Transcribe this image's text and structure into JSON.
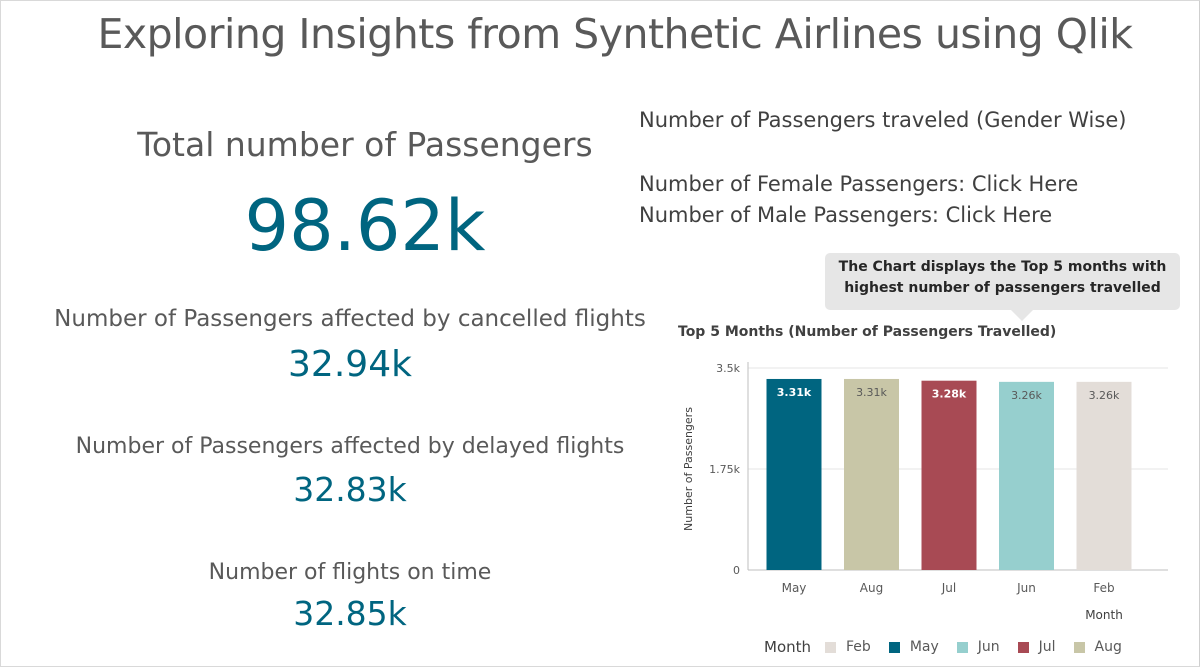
{
  "title": "Exploring Insights from Synthetic Airlines using Qlik",
  "kpis": {
    "total": {
      "label": "Total number of Passengers",
      "value": "98.62k"
    },
    "cancelled": {
      "label": "Number of Passengers affected by cancelled flights",
      "value": "32.94k"
    },
    "delayed": {
      "label": "Number of Passengers affected by delayed flights",
      "value": "32.83k"
    },
    "on_time": {
      "label": "Number of flights on time",
      "value": "32.85k"
    }
  },
  "gender": {
    "heading": "Number of Passengers traveled (Gender Wise)",
    "female_link": "Number of Female Passengers: Click Here",
    "male_link": "Number of Male Passengers: Click Here"
  },
  "callout": {
    "line1": "The Chart displays the Top 5 months with",
    "line2": "highest number of passengers travelled"
  },
  "colors": {
    "accent": "#006580",
    "text": "#595959"
  },
  "chart_data": {
    "type": "bar",
    "title": "Top 5 Months (Number of Passengers Travelled)",
    "xlabel": "Month",
    "ylabel": "Number of Passengers",
    "categories": [
      "May",
      "Aug",
      "Jul",
      "Jun",
      "Feb"
    ],
    "values": [
      3310,
      3310,
      3280,
      3260,
      3260
    ],
    "value_labels": [
      "3.31k",
      "3.31k",
      "3.28k",
      "3.26k",
      "3.26k"
    ],
    "colors": [
      "#006580",
      "#c8c6a7",
      "#a84a54",
      "#96cfce",
      "#e3ddd8"
    ],
    "ylim": [
      0,
      3500
    ],
    "yticks": [
      0,
      1750,
      3500
    ],
    "ytick_labels": [
      "0",
      "1.75k",
      "3.5k"
    ],
    "grid": true,
    "legend": {
      "title": "Month",
      "placement": "bottom",
      "items": [
        {
          "name": "Feb",
          "color": "#e3ddd8"
        },
        {
          "name": "May",
          "color": "#006580"
        },
        {
          "name": "Jun",
          "color": "#96cfce"
        },
        {
          "name": "Jul",
          "color": "#a84a54"
        },
        {
          "name": "Aug",
          "color": "#c8c6a7"
        }
      ]
    }
  }
}
